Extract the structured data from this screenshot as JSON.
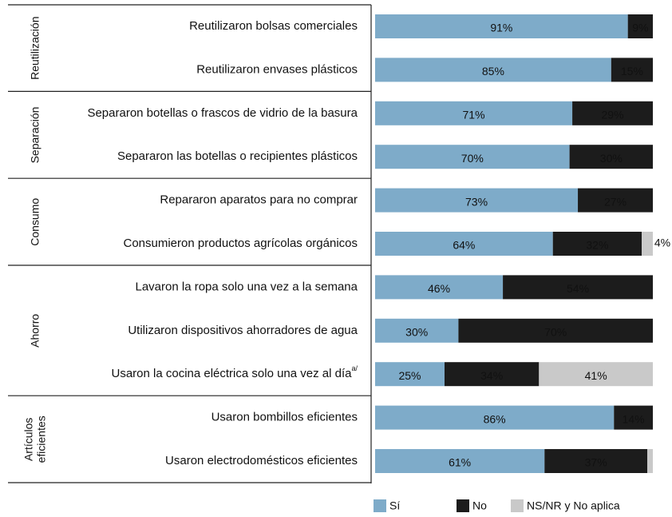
{
  "chart_data": {
    "type": "stacked-bar-horizontal",
    "categories": [
      "Reutilizaron bolsas comerciales",
      "Reutilizaron envases  plásticos",
      "Separaron botellas o frascos  de vidrio de la basura",
      "Separaron las botellas o  recipientes plásticos",
      "Repararon aparatos para no comprar",
      "Consumieron productos agrícolas orgánicos",
      "Lavaron la ropa solo una vez  a la semana",
      "Utilizaron dispositivos ahorradores de agua",
      "Usaron la cocina eléctrica solo una vez al día",
      "Usaron bombillos eficientes",
      "Usaron electrodomésticos eficientes"
    ],
    "category_notes": [
      null,
      null,
      null,
      null,
      null,
      null,
      null,
      null,
      "a/",
      null,
      null
    ],
    "groups": [
      {
        "lines": [
          "Reutilización"
        ],
        "count": 2
      },
      {
        "lines": [
          "Separación"
        ],
        "count": 2
      },
      {
        "lines": [
          "Consumo"
        ],
        "count": 2
      },
      {
        "lines": [
          "Ahorro"
        ],
        "count": 3
      },
      {
        "lines": [
          "Artículos",
          "eficientes"
        ],
        "count": 2
      }
    ],
    "xlim": [
      0,
      100
    ],
    "series": [
      {
        "name": "Sí",
        "color": "#7eabc9",
        "text_color": "#333333",
        "values": [
          91,
          85,
          71,
          70,
          73,
          64,
          46,
          30,
          25,
          86,
          61
        ],
        "value_labels": [
          "91%",
          "85%",
          "71%",
          "70%",
          "73%",
          "64%",
          "46%",
          "30%",
          "25%",
          "86%",
          "61%"
        ]
      },
      {
        "name": "No",
        "color": "#1c1c1c",
        "text_color": "#ffffff",
        "values": [
          9,
          15,
          29,
          30,
          27,
          32,
          54,
          70,
          34,
          14,
          37
        ],
        "value_labels": [
          "9%",
          "15%",
          "29%",
          "30%",
          "27%",
          "32%",
          "54%",
          "70%",
          "34%",
          "14%",
          "37%"
        ]
      },
      {
        "name": "NS/NR y No aplica",
        "color": "#c9c9c9",
        "text_color": "#333333",
        "values": [
          0,
          0,
          0,
          0,
          0,
          4,
          0,
          0,
          41,
          0,
          2
        ],
        "value_labels": [
          null,
          null,
          null,
          null,
          null,
          "4%",
          null,
          null,
          "41%",
          null,
          null
        ]
      }
    ]
  }
}
